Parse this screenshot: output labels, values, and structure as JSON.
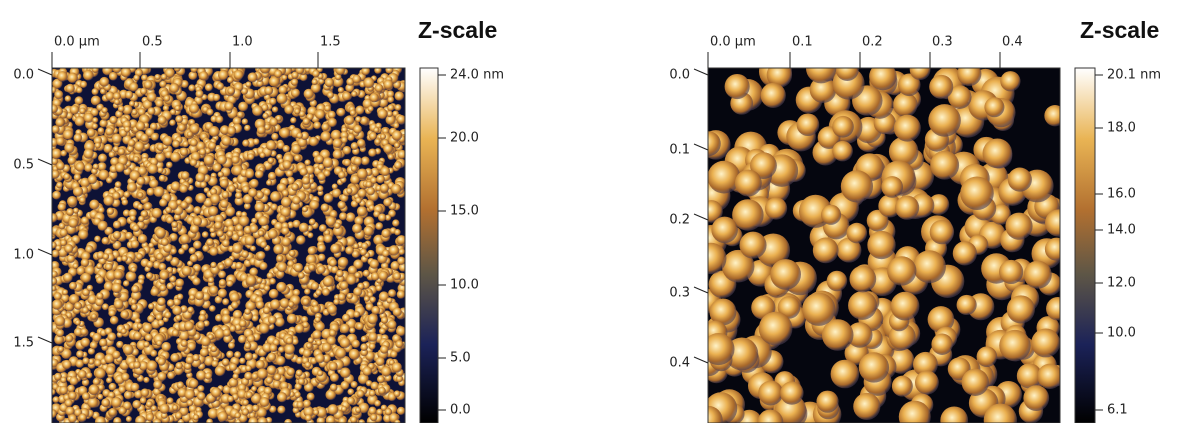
{
  "panels": [
    {
      "z_title": "Z-scale",
      "x_ticks": [
        "0.0 µm",
        "0.5",
        "1.0",
        "1.5"
      ],
      "y_ticks": [
        "0.0",
        "0.5",
        "1.0",
        "1.5"
      ],
      "z_ticks": [
        "24.0 nm",
        "20.0",
        "15.0",
        "10.0",
        "5.0",
        "0.0"
      ]
    },
    {
      "z_title": "Z-scale",
      "x_ticks": [
        "0.0 µm",
        "0.1",
        "0.2",
        "0.3",
        "0.4"
      ],
      "y_ticks": [
        "0.0",
        "0.1",
        "0.2",
        "0.3",
        "0.4"
      ],
      "z_ticks": [
        "20.1 nm",
        "18.0",
        "16.0",
        "14.0",
        "12.0",
        "10.0",
        "6.1"
      ]
    }
  ]
}
